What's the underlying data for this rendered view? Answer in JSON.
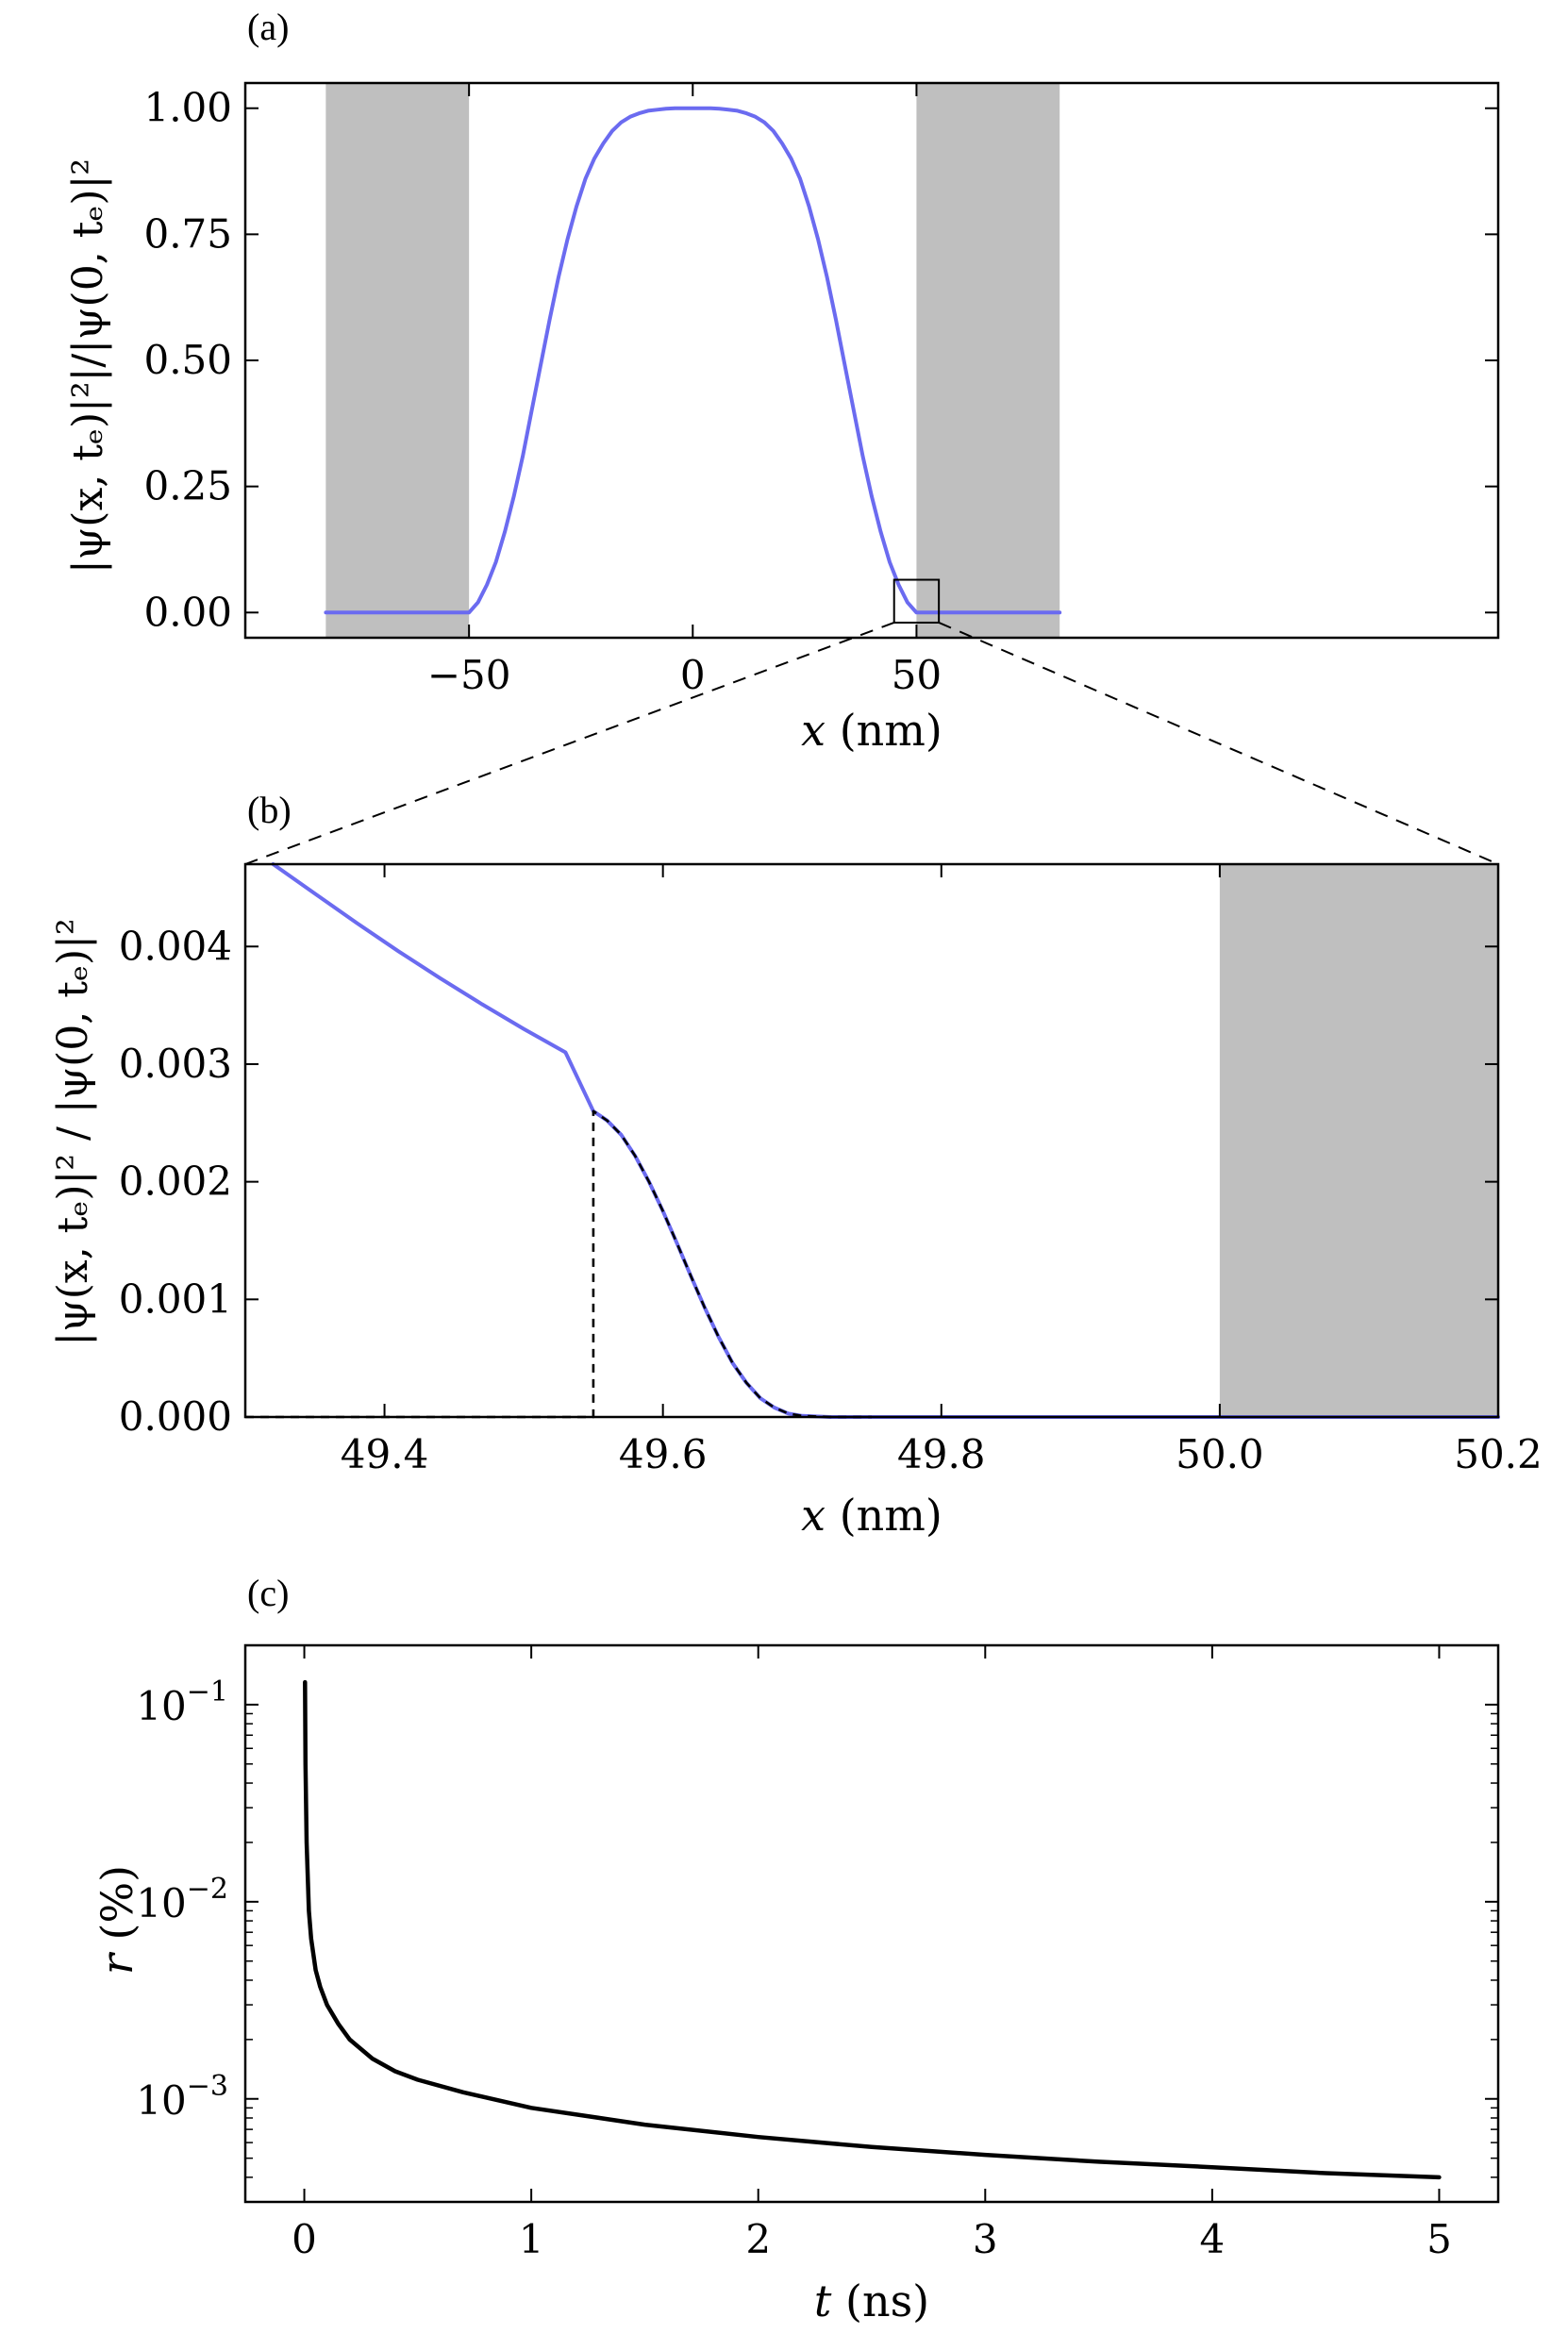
{
  "chart_data": [
    {
      "id": "a",
      "panel_label": "(a)",
      "type": "line",
      "xlabel_var": "x",
      "xlabel_unit": " (nm)",
      "ylabel": "|ψ(x, tₑ)|²|/|ψ(0, tₑ)|²",
      "xlim": [
        -100,
        180
      ],
      "ylim": [
        -0.05,
        1.05
      ],
      "xticks": [
        -50,
        0,
        50
      ],
      "xtick_labels": [
        "−50",
        "0",
        "50"
      ],
      "yticks": [
        0,
        0.25,
        0.5,
        0.75,
        1
      ],
      "ytick_labels": [
        "0.00",
        "0.25",
        "0.50",
        "0.75",
        "1.00"
      ],
      "shaded_regions": [
        [
          -82,
          -50
        ],
        [
          50,
          82
        ]
      ],
      "series": [
        {
          "color": "#6b6bf0",
          "x": [
            -82,
            -50,
            -48,
            -46,
            -44,
            -42,
            -40,
            -38,
            -36,
            -34,
            -32,
            -30,
            -28,
            -26,
            -24,
            -22,
            -20,
            -18,
            -16,
            -14,
            -12,
            -10,
            -8,
            -6,
            -4,
            -2,
            0,
            2,
            4,
            6,
            8,
            10,
            12,
            14,
            16,
            18,
            20,
            22,
            24,
            26,
            28,
            30,
            32,
            34,
            36,
            38,
            40,
            42,
            44,
            46,
            48,
            50,
            82
          ],
          "y": [
            0,
            0,
            0.02,
            0.055,
            0.1,
            0.16,
            0.23,
            0.31,
            0.4,
            0.49,
            0.58,
            0.665,
            0.74,
            0.805,
            0.86,
            0.9,
            0.93,
            0.955,
            0.972,
            0.983,
            0.99,
            0.995,
            0.997,
            0.999,
            1,
            1,
            1,
            1,
            1,
            0.999,
            0.997,
            0.995,
            0.99,
            0.983,
            0.972,
            0.955,
            0.93,
            0.9,
            0.86,
            0.805,
            0.74,
            0.665,
            0.58,
            0.49,
            0.4,
            0.31,
            0.23,
            0.16,
            0.1,
            0.055,
            0.02,
            0,
            0
          ]
        }
      ],
      "inset_box": {
        "x": [
          45,
          55
        ],
        "y": [
          -0.02,
          0.065
        ]
      }
    },
    {
      "id": "b",
      "panel_label": "(b)",
      "type": "line",
      "xlabel_var": "x",
      "xlabel_unit": " (nm)",
      "ylabel": "|ψ(x, tₑ)|² / |ψ(0, tₑ)|²",
      "xlim": [
        49.3,
        50.2
      ],
      "ylim": [
        0,
        0.0047
      ],
      "xticks": [
        49.4,
        49.6,
        49.8,
        50.0,
        50.2
      ],
      "xtick_labels": [
        "49.4",
        "49.6",
        "49.8",
        "50.0",
        "50.2"
      ],
      "yticks": [
        0,
        0.001,
        0.002,
        0.003,
        0.004
      ],
      "ytick_labels": [
        "0.000",
        "0.001",
        "0.002",
        "0.003",
        "0.004"
      ],
      "shaded_regions": [
        [
          50.0,
          50.2
        ]
      ],
      "series": [
        {
          "color": "#6b6bf0",
          "style": "solid",
          "x": [
            49.32,
            49.35,
            49.38,
            49.41,
            49.44,
            49.47,
            49.5,
            49.53,
            49.55,
            49.56,
            49.57,
            49.58,
            49.59,
            49.6,
            49.61,
            49.62,
            49.63,
            49.64,
            49.65,
            49.66,
            49.67,
            49.68,
            49.69,
            49.7,
            49.72,
            49.75,
            49.8,
            49.9,
            50.0,
            50.2
          ],
          "y": [
            0.0047,
            0.00445,
            0.0042,
            0.00396,
            0.00373,
            0.00351,
            0.0033,
            0.0031,
            0.0026,
            0.00252,
            0.0024,
            0.00222,
            0.002,
            0.00175,
            0.00148,
            0.0012,
            0.00093,
            0.00068,
            0.00046,
            0.00029,
            0.00016,
            8e-05,
            3e-05,
            1e-05,
            0,
            0,
            0,
            0,
            0,
            0
          ]
        },
        {
          "color": "#000000",
          "style": "dashed",
          "x": [
            49.3,
            49.55,
            49.55,
            49.56,
            49.57,
            49.58,
            49.59,
            49.6,
            49.61,
            49.62,
            49.63,
            49.64,
            49.65,
            49.66,
            49.67,
            49.68,
            49.69,
            49.7,
            49.72,
            49.75
          ],
          "y": [
            0,
            0,
            0.0026,
            0.00252,
            0.0024,
            0.00222,
            0.002,
            0.00175,
            0.00148,
            0.0012,
            0.00093,
            0.00068,
            0.00046,
            0.00029,
            0.00016,
            8e-05,
            3e-05,
            1e-05,
            0,
            0
          ]
        }
      ]
    },
    {
      "id": "c",
      "panel_label": "(c)",
      "type": "line",
      "xlabel_var": "t",
      "xlabel_unit": " (ns)",
      "ylabel_var": "r",
      "ylabel_unit": " (%)",
      "yscale": "log",
      "xlim": [
        -0.26,
        5.26
      ],
      "ylim": [
        0.0003,
        0.2
      ],
      "xticks": [
        0,
        1,
        2,
        3,
        4,
        5
      ],
      "xtick_labels": [
        "0",
        "1",
        "2",
        "3",
        "4",
        "5"
      ],
      "yticks": [
        0.001,
        0.01,
        0.1
      ],
      "ytick_labels": [
        {
          "base": "10",
          "exp": "−3"
        },
        {
          "base": "10",
          "exp": "−2"
        },
        {
          "base": "10",
          "exp": "−1"
        }
      ],
      "series": [
        {
          "color": "#000000",
          "style": "solid",
          "x": [
            0.003,
            0.005,
            0.01,
            0.02,
            0.03,
            0.05,
            0.07,
            0.1,
            0.15,
            0.2,
            0.3,
            0.4,
            0.5,
            0.7,
            1.0,
            1.5,
            2.0,
            2.5,
            3.0,
            3.5,
            4.0,
            4.5,
            5.0
          ],
          "y": [
            0.13,
            0.05,
            0.02,
            0.009,
            0.0065,
            0.0045,
            0.0037,
            0.003,
            0.0024,
            0.002,
            0.0016,
            0.00138,
            0.00125,
            0.00108,
            0.0009,
            0.00074,
            0.00064,
            0.00057,
            0.00052,
            0.00048,
            0.00045,
            0.00042,
            0.0004
          ]
        }
      ]
    }
  ]
}
